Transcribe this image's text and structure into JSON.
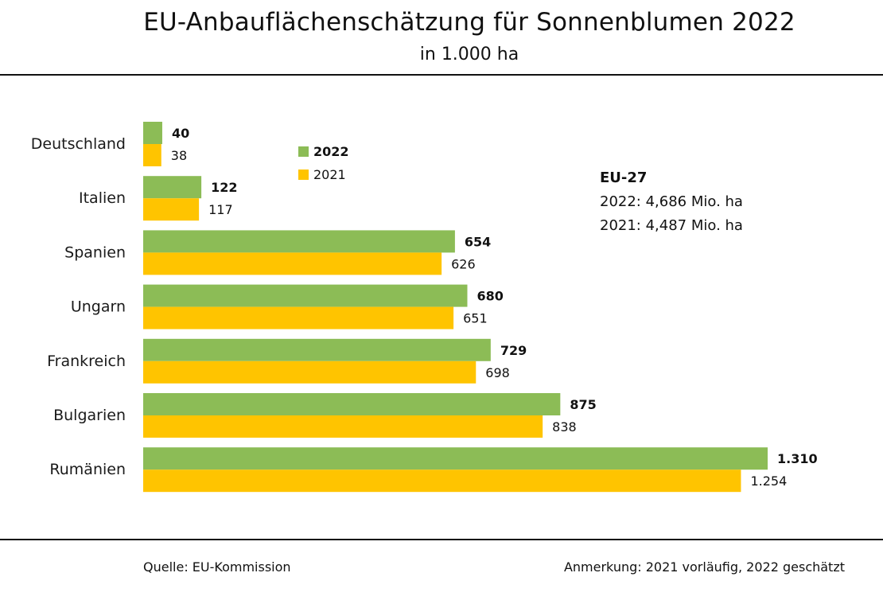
{
  "header": {
    "title": "EU-Anbauflächenschätzung für Sonnenblumen 2022",
    "subtitle": "in 1.000 ha"
  },
  "legend": {
    "items": [
      {
        "label": "2022",
        "color": "#8cbc56"
      },
      {
        "label": "2021",
        "color": "#ffc400"
      }
    ]
  },
  "summary": {
    "heading": "EU-27",
    "line_2022": "2022: 4,686 Mio. ha",
    "line_2021": "2021: 4,487 Mio. ha"
  },
  "footer": {
    "source": "Quelle:  EU-Kommission",
    "note": "Anmerkung: 2021 vorläufig, 2022 geschätzt"
  },
  "chart_data": {
    "type": "bar",
    "orientation": "horizontal",
    "title": "EU-Anbauflächenschätzung für Sonnenblumen 2022",
    "subtitle": "in 1.000 ha",
    "categories": [
      "Deutschland",
      "Italien",
      "Spanien",
      "Ungarn",
      "Frankreich",
      "Bulgarien",
      "Rumänien"
    ],
    "series": [
      {
        "name": "2022",
        "color": "#8cbc56",
        "values": [
          40,
          122,
          654,
          680,
          729,
          875,
          1310
        ],
        "labels": [
          "40",
          "122",
          "654",
          "680",
          "729",
          "875",
          "1.310"
        ]
      },
      {
        "name": "2021",
        "color": "#ffc400",
        "values": [
          38,
          117,
          626,
          651,
          698,
          838,
          1254
        ],
        "labels": [
          "38",
          "117",
          "626",
          "651",
          "698",
          "838",
          "1.254"
        ]
      }
    ],
    "xlim": [
      0,
      1310
    ],
    "grid": false,
    "legend_position": "top-center"
  }
}
